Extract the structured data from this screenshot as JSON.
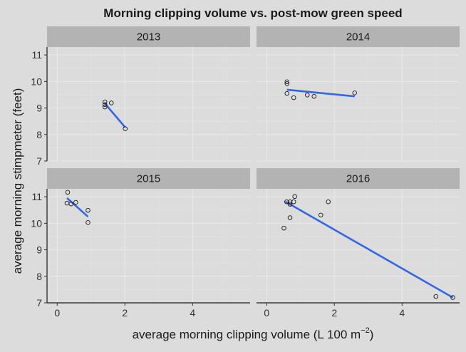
{
  "chart_data": {
    "type": "scatter",
    "title": "Morning clipping volume vs. post-mow green speed",
    "xlabel": "average morning clipping volume (L 100 m",
    "xlabel_sup": "−2",
    "xlabel_end": ")",
    "ylabel": "average morning stimpmeter (feet)",
    "xlim": [
      -0.3,
      5.7
    ],
    "ylim": [
      7,
      11.3
    ],
    "x_ticks": [
      0,
      2,
      4
    ],
    "y_ticks": [
      7,
      8,
      9,
      10,
      11
    ],
    "x_tick_labels": [
      "0",
      "2",
      "4"
    ],
    "y_tick_labels": [
      "7",
      "8",
      "9",
      "10",
      "11"
    ],
    "grid": true,
    "panels": [
      {
        "label": "2013",
        "points": [
          {
            "x": 1.41,
            "y": 9.23
          },
          {
            "x": 1.41,
            "y": 9.13
          },
          {
            "x": 1.41,
            "y": 9.04
          },
          {
            "x": 1.6,
            "y": 9.19
          },
          {
            "x": 2.01,
            "y": 8.22
          }
        ],
        "fit": [
          {
            "x": 1.41,
            "y": 9.17
          },
          {
            "x": 2.01,
            "y": 8.27
          }
        ]
      },
      {
        "label": "2014",
        "points": [
          {
            "x": 0.6,
            "y": 9.99
          },
          {
            "x": 0.6,
            "y": 9.92
          },
          {
            "x": 0.6,
            "y": 9.55
          },
          {
            "x": 0.8,
            "y": 9.39
          },
          {
            "x": 1.2,
            "y": 9.49
          },
          {
            "x": 1.4,
            "y": 9.44
          },
          {
            "x": 2.6,
            "y": 9.57
          }
        ],
        "fit": [
          {
            "x": 0.6,
            "y": 9.69
          },
          {
            "x": 2.6,
            "y": 9.44
          }
        ]
      },
      {
        "label": "2015",
        "points": [
          {
            "x": 0.31,
            "y": 11.17
          },
          {
            "x": 0.29,
            "y": 10.76
          },
          {
            "x": 0.41,
            "y": 10.73
          },
          {
            "x": 0.55,
            "y": 10.79
          },
          {
            "x": 0.91,
            "y": 10.49
          },
          {
            "x": 0.91,
            "y": 10.03
          }
        ],
        "fit": [
          {
            "x": 0.29,
            "y": 10.95
          },
          {
            "x": 0.91,
            "y": 10.25
          }
        ]
      },
      {
        "label": "2016",
        "points": [
          {
            "x": 0.51,
            "y": 9.82
          },
          {
            "x": 0.59,
            "y": 10.81
          },
          {
            "x": 0.69,
            "y": 10.72
          },
          {
            "x": 0.69,
            "y": 10.81
          },
          {
            "x": 0.69,
            "y": 10.21
          },
          {
            "x": 0.8,
            "y": 10.81
          },
          {
            "x": 0.83,
            "y": 11.01
          },
          {
            "x": 1.6,
            "y": 10.31
          },
          {
            "x": 1.82,
            "y": 10.81
          },
          {
            "x": 5.0,
            "y": 7.24
          },
          {
            "x": 5.5,
            "y": 7.2
          }
        ],
        "fit": [
          {
            "x": 0.55,
            "y": 10.82
          },
          {
            "x": 5.5,
            "y": 7.2
          }
        ]
      }
    ]
  },
  "colors": {
    "background": "#dcdcdc",
    "strip": "#b3b3b3",
    "fit_line": "#3366e6",
    "points": "#1a1a1a"
  }
}
